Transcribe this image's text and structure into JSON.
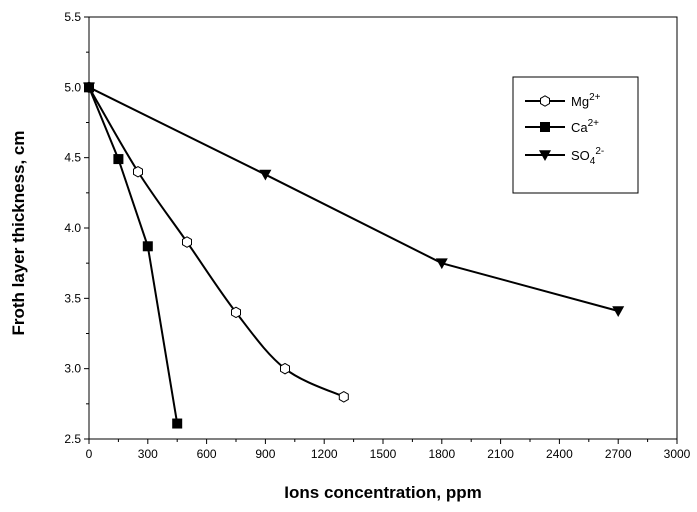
{
  "chart_data": {
    "type": "line",
    "xlabel": "Ions concentration,  ppm",
    "ylabel": "Froth layer thickness, cm",
    "xlim": [
      0,
      3000
    ],
    "ylim": [
      2.5,
      5.5
    ],
    "x_ticks": [
      "0",
      "300",
      "600",
      "900",
      "1200",
      "1500",
      "1800",
      "2100",
      "2400",
      "2700",
      "3000"
    ],
    "y_ticks": [
      "2.5",
      "3.0",
      "3.5",
      "4.0",
      "4.5",
      "5.0",
      "5.5"
    ],
    "grid": false,
    "legend_position": "top-right",
    "series": [
      {
        "name": "Mg2+",
        "label_base": "Mg",
        "label_sup": "2+",
        "marker": "open-hexagon",
        "x": [
          0,
          250,
          500,
          750,
          1000,
          1300
        ],
        "y": [
          5.0,
          4.4,
          3.9,
          3.4,
          3.0,
          2.8
        ]
      },
      {
        "name": "Ca2+",
        "label_base": "Ca",
        "label_sup": "2+",
        "marker": "filled-square",
        "x": [
          0,
          150,
          300,
          450
        ],
        "y": [
          5.0,
          4.49,
          3.87,
          2.61
        ]
      },
      {
        "name": "SO42-",
        "label_base": "SO",
        "label_sub": "4",
        "label_sup": "2-",
        "marker": "filled-triangle-down",
        "x": [
          0,
          900,
          1800,
          2700
        ],
        "y": [
          5.0,
          4.38,
          3.75,
          3.41
        ]
      }
    ]
  }
}
